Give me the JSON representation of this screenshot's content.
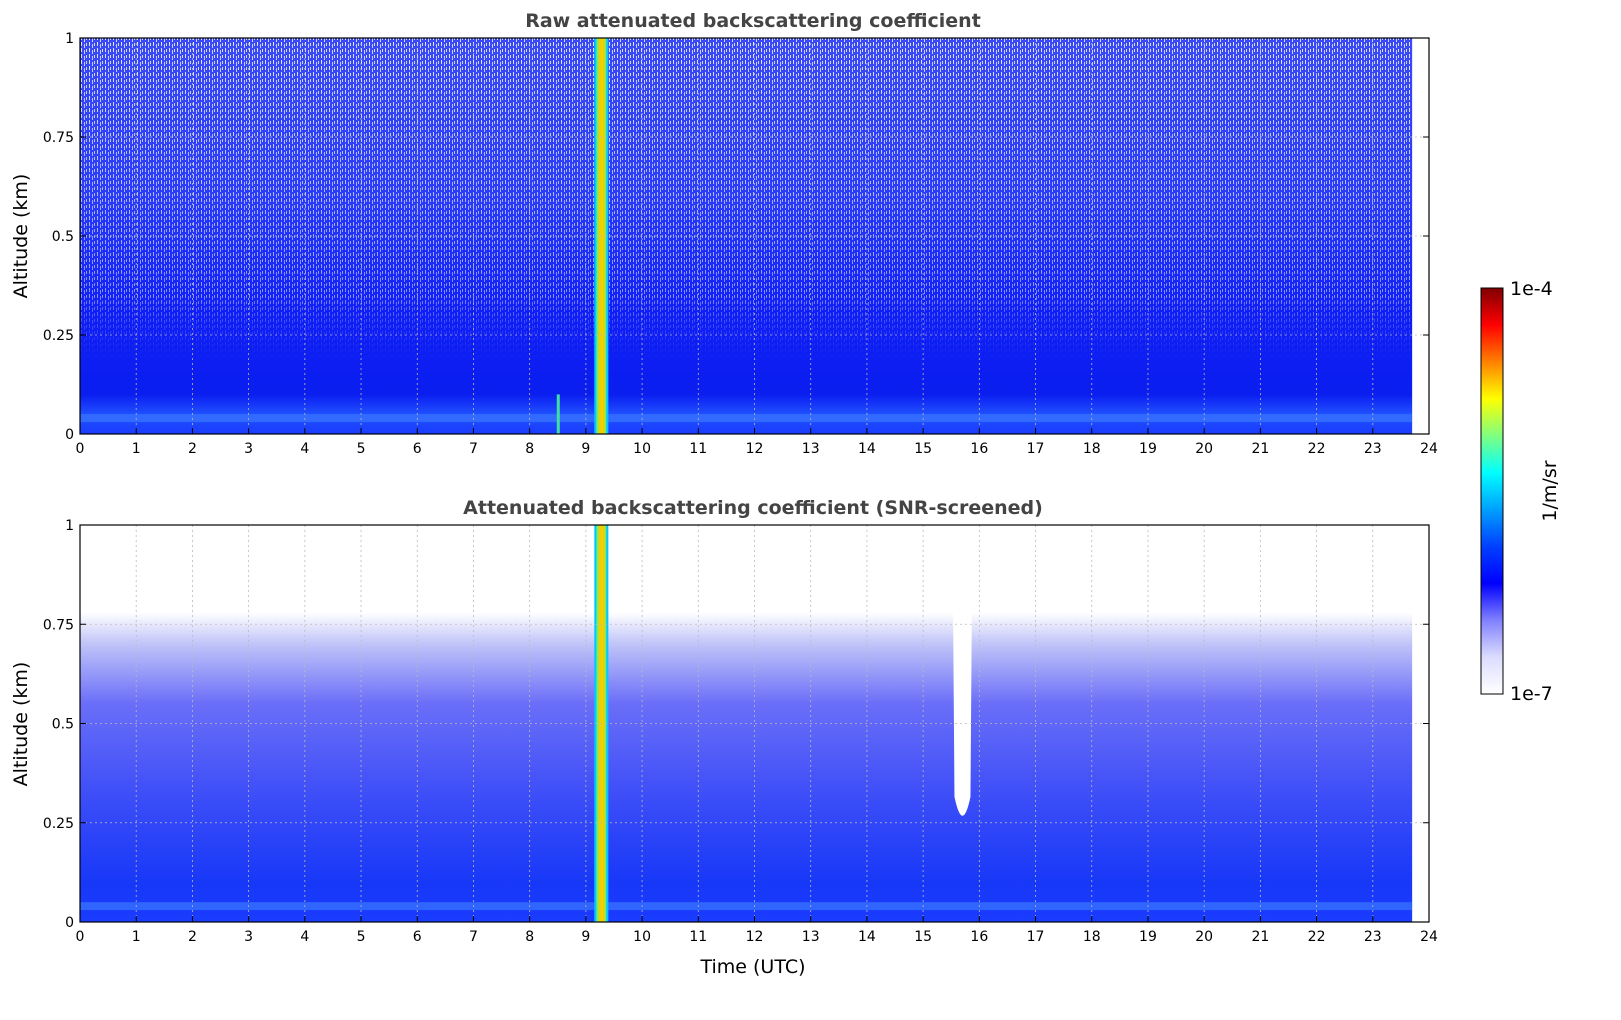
{
  "chart_data": [
    {
      "type": "heatmap",
      "title": "Raw attenuated backscattering coefficient",
      "xlabel": "",
      "ylabel": "Altitude (km)",
      "xlim": [
        0,
        24
      ],
      "ylim": [
        0,
        1
      ],
      "xticks": [
        "0",
        "1",
        "2",
        "3",
        "4",
        "5",
        "6",
        "7",
        "8",
        "9",
        "10",
        "11",
        "12",
        "13",
        "14",
        "15",
        "16",
        "17",
        "18",
        "19",
        "20",
        "21",
        "22",
        "23",
        "24"
      ],
      "yticks": [
        "0",
        "0.25",
        "0.5",
        "0.75",
        "1"
      ],
      "grid": true,
      "data_end_time": 23.7,
      "features": [
        {
          "time_start": 9.15,
          "time_end": 9.4,
          "level": "high"
        },
        {
          "time": 8.5,
          "alt_top": 0.1,
          "level": "medium"
        }
      ]
    },
    {
      "type": "heatmap",
      "title": "Attenuated backscattering coefficient (SNR-screened)",
      "xlabel": "Time (UTC)",
      "ylabel": "Altitude (km)",
      "xlim": [
        0,
        24
      ],
      "ylim": [
        0,
        1
      ],
      "xticks": [
        "0",
        "1",
        "2",
        "3",
        "4",
        "5",
        "6",
        "7",
        "8",
        "9",
        "10",
        "11",
        "12",
        "13",
        "14",
        "15",
        "16",
        "17",
        "18",
        "19",
        "20",
        "21",
        "22",
        "23",
        "24"
      ],
      "yticks": [
        "0",
        "0.25",
        "0.5",
        "0.75",
        "1"
      ],
      "grid": true,
      "data_end_time": 23.7,
      "features": [
        {
          "time_start": 9.15,
          "time_end": 9.4,
          "level": "high"
        },
        {
          "time": 15.7,
          "alt_bottom": 0.24,
          "level": "screened"
        }
      ]
    }
  ],
  "colorbar": {
    "min_label": "1e-7",
    "max_label": "1e-4",
    "label": "1/m/sr",
    "colormap": [
      "#ffffff",
      "#dcdcff",
      "#8080ff",
      "#0000ff",
      "#0040ff",
      "#00a0ff",
      "#00ffff",
      "#80ff80",
      "#ffff00",
      "#ff8000",
      "#ff0000",
      "#800000"
    ]
  }
}
